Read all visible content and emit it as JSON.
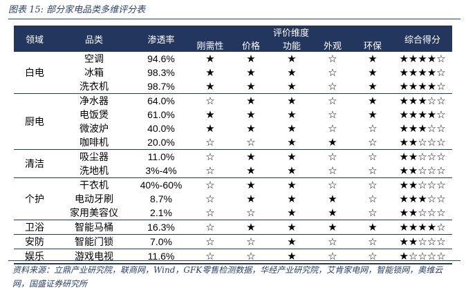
{
  "caption": "图表 15:  部分家电品类多维评分表",
  "header": {
    "field": "领域",
    "category": "品类",
    "penetration": "渗透率",
    "dimensions_group": "评价维度",
    "dimensions": [
      "刚需性",
      "价格",
      "功能",
      "外观",
      "环保"
    ],
    "total": "综合得分"
  },
  "groups": [
    {
      "field": "白电",
      "rows": [
        {
          "category": "空调",
          "penetration": "94.6%",
          "marks": [
            "★",
            "★",
            "★",
            "☆",
            "★"
          ],
          "score": "★★★★☆"
        },
        {
          "category": "冰箱",
          "penetration": "98.3%",
          "marks": [
            "★",
            "★",
            "★",
            "☆",
            "★"
          ],
          "score": "★★★★☆"
        },
        {
          "category": "洗衣机",
          "penetration": "98.7%",
          "marks": [
            "★",
            "★",
            "★",
            "☆",
            "★"
          ],
          "score": "★★★★☆"
        }
      ]
    },
    {
      "field": "厨电",
      "rows": [
        {
          "category": "净水器",
          "penetration": "64.0%",
          "marks": [
            "☆",
            "★",
            "★",
            "☆",
            "★"
          ],
          "score": "★★★☆☆"
        },
        {
          "category": "电饭煲",
          "penetration": "61.0%",
          "marks": [
            "★",
            "★",
            "★",
            "☆",
            "★"
          ],
          "score": "★★★★☆"
        },
        {
          "category": "微波炉",
          "penetration": "40.0%",
          "marks": [
            "★",
            "★",
            "★",
            "☆",
            "☆"
          ],
          "score": "★★★☆☆"
        },
        {
          "category": "咖啡机",
          "penetration": "20.0%",
          "marks": [
            "☆",
            "☆",
            "★",
            "★",
            "☆"
          ],
          "score": "★★☆☆☆"
        }
      ]
    },
    {
      "field": "清洁",
      "rows": [
        {
          "category": "吸尘器",
          "penetration": "11.0%",
          "marks": [
            "☆",
            "★",
            "★",
            "☆",
            "☆"
          ],
          "score": "★★☆☆☆"
        },
        {
          "category": "洗地机",
          "penetration": "3%-4%",
          "marks": [
            "☆",
            "★",
            "★",
            "☆",
            "☆"
          ],
          "score": "★★☆☆☆"
        }
      ]
    },
    {
      "field": "个护",
      "rows": [
        {
          "category": "干衣机",
          "penetration": "40%-60%",
          "marks": [
            "☆",
            "★",
            "★",
            "☆",
            "☆"
          ],
          "score": "★★☆☆☆"
        },
        {
          "category": "电动牙刷",
          "penetration": "8.7%",
          "marks": [
            "☆",
            "★",
            "★",
            "★",
            "☆"
          ],
          "score": "★★★☆☆"
        },
        {
          "category": "家用美容仪",
          "penetration": "2.1%",
          "marks": [
            "☆",
            "☆",
            "★",
            "★",
            "☆"
          ],
          "score": "★★☆☆☆"
        }
      ]
    },
    {
      "field": "卫浴",
      "rows": [
        {
          "category": "智能马桶",
          "penetration": "16.3%",
          "marks": [
            "☆",
            "★",
            "★",
            "★",
            "★"
          ],
          "score": "★★★★☆"
        }
      ]
    },
    {
      "field": "安防",
      "rows": [
        {
          "category": "智能门锁",
          "penetration": "7.0%",
          "marks": [
            "☆",
            "☆",
            "★",
            "☆",
            "☆"
          ],
          "score": "★★☆☆☆"
        }
      ]
    },
    {
      "field": "娱乐",
      "rows": [
        {
          "category": "游戏电视",
          "penetration": "11.6%",
          "marks": [
            "☆",
            "☆",
            "★",
            "☆",
            "☆"
          ],
          "score": "★☆☆☆☆"
        }
      ]
    }
  ],
  "source": "资料来源：立鼎产业研究院，联商网，Wind，GFK零售检测数据，华经产业研究院，艾肯家电网，智能锁网，奥维云网，国盛证券研究所"
}
